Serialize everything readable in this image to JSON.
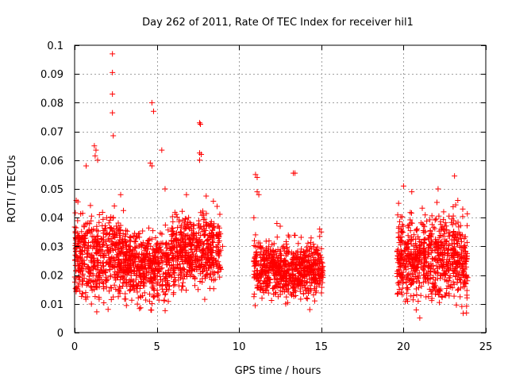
{
  "chart_data": {
    "type": "scatter",
    "title": "Day 262 of 2011, Rate Of TEC Index for receiver hil1",
    "xlabel": "GPS time / hours",
    "ylabel": "ROTI / TECUs",
    "xlim": [
      0,
      25
    ],
    "ylim": [
      0,
      0.1
    ],
    "x_ticks": [
      0,
      5,
      10,
      15,
      20,
      25
    ],
    "x_tick_labels": [
      "0",
      "5",
      "10",
      "15",
      "20",
      "25"
    ],
    "y_ticks": [
      0,
      0.01,
      0.02,
      0.03,
      0.04,
      0.05,
      0.06,
      0.07,
      0.08,
      0.09,
      0.1
    ],
    "y_tick_labels": [
      "0",
      "0.01",
      "0.02",
      "0.03",
      "0.04",
      "0.05",
      "0.06",
      "0.07",
      "0.08",
      "0.09",
      "0.1"
    ],
    "grid": true,
    "marker": "+",
    "marker_color": "#ff0000",
    "series": [
      {
        "points": [
          [
            2.3,
            0.097
          ],
          [
            2.3,
            0.0905
          ],
          [
            2.3,
            0.083
          ],
          [
            2.3,
            0.0765
          ],
          [
            2.35,
            0.0685
          ],
          [
            4.7,
            0.08
          ],
          [
            4.8,
            0.077
          ],
          [
            7.6,
            0.073
          ],
          [
            7.65,
            0.0725
          ],
          [
            7.6,
            0.0625
          ],
          [
            7.7,
            0.062
          ],
          [
            7.6,
            0.06
          ],
          [
            5.3,
            0.0635
          ],
          [
            1.2,
            0.065
          ],
          [
            1.3,
            0.0635
          ],
          [
            1.25,
            0.0615
          ],
          [
            1.4,
            0.06
          ],
          [
            0.7,
            0.058
          ],
          [
            4.6,
            0.059
          ],
          [
            4.7,
            0.058
          ],
          [
            11.0,
            0.055
          ],
          [
            11.1,
            0.054
          ],
          [
            13.3,
            0.0555
          ],
          [
            13.4,
            0.0555
          ],
          [
            23.1,
            0.0545
          ],
          [
            20.0,
            0.051
          ],
          [
            20.5,
            0.049
          ],
          [
            22.1,
            0.05
          ],
          [
            0.1,
            0.046
          ],
          [
            0.2,
            0.0455
          ],
          [
            2.8,
            0.048
          ],
          [
            5.5,
            0.05
          ],
          [
            6.8,
            0.048
          ],
          [
            8.0,
            0.0475
          ],
          [
            11.1,
            0.049
          ],
          [
            11.2,
            0.048
          ],
          [
            12.3,
            0.038
          ],
          [
            12.5,
            0.037
          ],
          [
            14.9,
            0.036
          ],
          [
            15.0,
            0.035
          ],
          [
            19.7,
            0.045
          ],
          [
            23.3,
            0.046
          ],
          [
            23.6,
            0.043
          ],
          [
            8.7,
            0.037
          ],
          [
            8.8,
            0.035
          ],
          [
            9.0,
            0.03
          ],
          [
            8.9,
            0.022
          ],
          [
            8.7,
            0.021
          ],
          [
            10.9,
            0.04
          ],
          [
            11.0,
            0.034
          ],
          [
            11.3,
            0.03
          ],
          [
            11.5,
            0.027
          ],
          [
            12.0,
            0.022
          ],
          [
            12.8,
            0.017
          ],
          [
            13.2,
            0.013
          ],
          [
            13.6,
            0.031
          ],
          [
            14.1,
            0.012
          ],
          [
            14.3,
            0.008
          ],
          [
            14.6,
            0.011
          ],
          [
            14.8,
            0.017
          ],
          [
            15.1,
            0.023
          ],
          [
            14.2,
            0.025
          ],
          [
            13.9,
            0.02
          ]
        ]
      }
    ],
    "clusters": [
      {
        "x_range": [
          0.0,
          3.0
        ],
        "y_range": [
          0.005,
          0.045
        ]
      },
      {
        "x_range": [
          3.0,
          5.8
        ],
        "y_range": [
          0.005,
          0.04
        ]
      },
      {
        "x_range": [
          5.8,
          8.9
        ],
        "y_range": [
          0.01,
          0.045
        ]
      },
      {
        "x_range": [
          10.9,
          15.1
        ],
        "y_range": [
          0.008,
          0.035
        ]
      },
      {
        "x_range": [
          19.6,
          23.9
        ],
        "y_range": [
          0.004,
          0.045
        ]
      }
    ]
  }
}
